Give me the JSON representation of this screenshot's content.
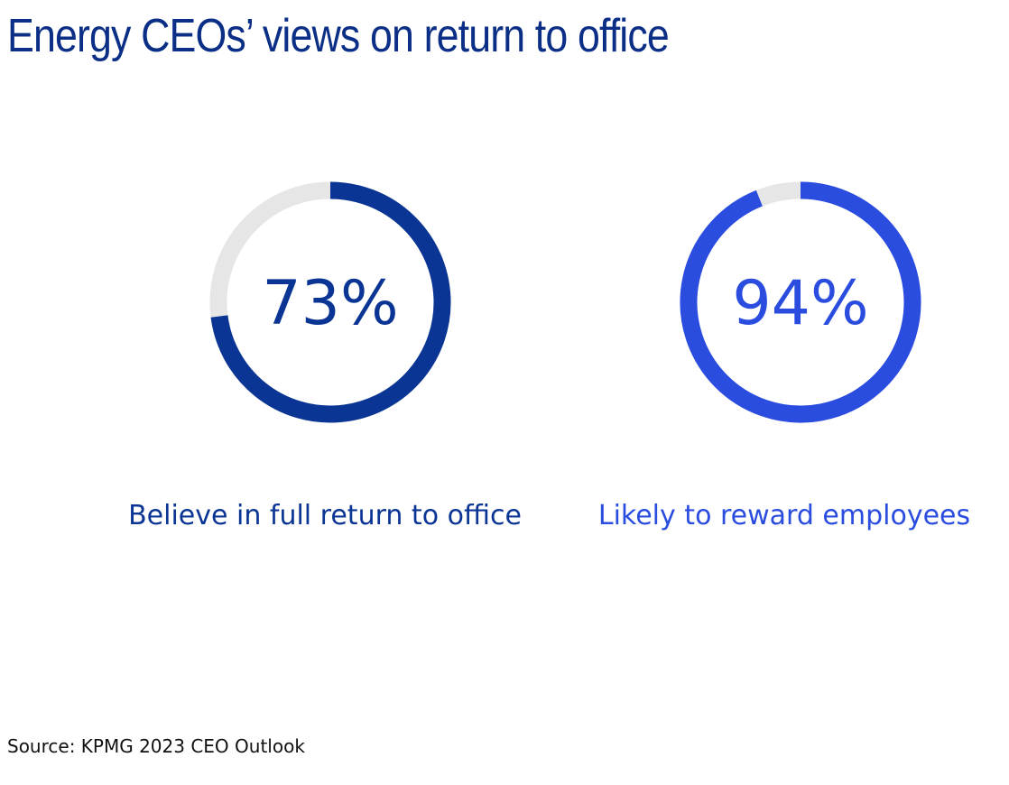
{
  "title": "Energy CEOs’ views on return to office",
  "chart_data": {
    "type": "pie",
    "charts": [
      {
        "value": 73,
        "value_label": "73%",
        "label": "Believe in full return to office",
        "color": "#0a3594",
        "remainder_color": "#e6e6e6"
      },
      {
        "value": 94,
        "value_label": "94%",
        "label": "Likely to reward employees",
        "color": "#2a4de0",
        "remainder_color": "#e6e6e6"
      }
    ]
  },
  "source": "Source: KPMG 2023 CEO Outlook"
}
